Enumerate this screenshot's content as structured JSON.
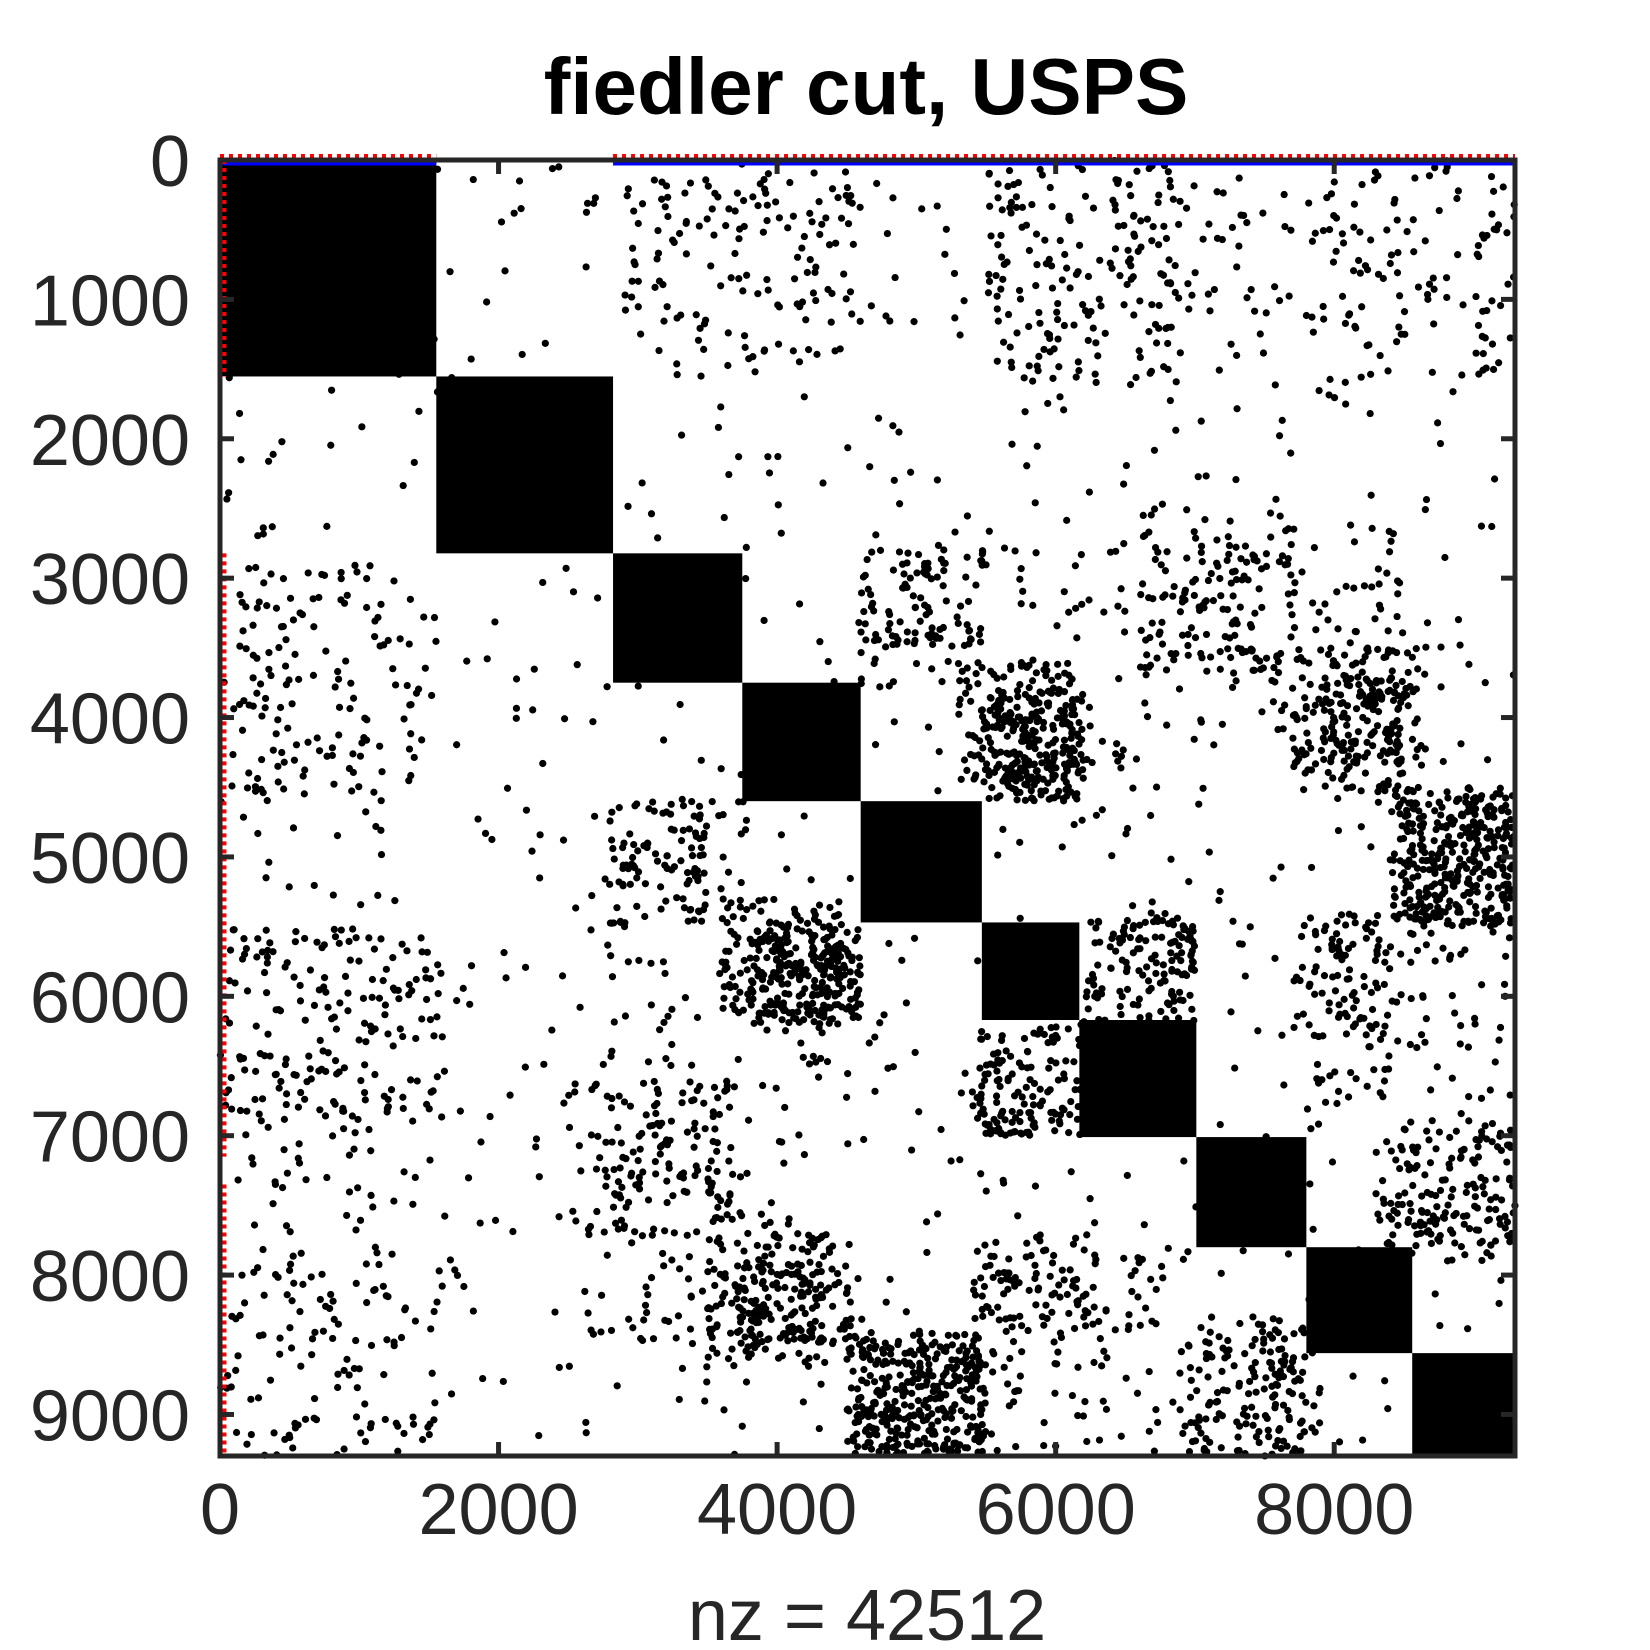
{
  "chart_data": {
    "type": "spy",
    "title": "fiedler cut, USPS",
    "xlabel": "nz = 42512",
    "ylabel": "",
    "xlim": [
      0,
      9298
    ],
    "ylim": [
      0,
      9298
    ],
    "y_reversed": true,
    "xticks": [
      0,
      2000,
      4000,
      6000,
      8000
    ],
    "xtick_labels": [
      "0",
      "2000",
      "4000",
      "6000",
      "8000"
    ],
    "yticks": [
      0,
      1000,
      2000,
      3000,
      4000,
      5000,
      6000,
      7000,
      8000,
      9000
    ],
    "ytick_labels": [
      "0",
      "1000",
      "2000",
      "3000",
      "4000",
      "5000",
      "6000",
      "7000",
      "8000",
      "9000"
    ],
    "nz": 42512,
    "grid": false,
    "blocks": [
      {
        "start": 0,
        "end": 1553
      },
      {
        "start": 1553,
        "end": 2822
      },
      {
        "start": 2822,
        "end": 3750
      },
      {
        "start": 3750,
        "end": 4600
      },
      {
        "start": 4600,
        "end": 5470
      },
      {
        "start": 5470,
        "end": 6170
      },
      {
        "start": 6170,
        "end": 7010
      },
      {
        "start": 7010,
        "end": 7800
      },
      {
        "start": 7800,
        "end": 8560
      },
      {
        "start": 8560,
        "end": 9298
      }
    ],
    "scatter_clusters": [
      {
        "x": [
          3800,
          4600
        ],
        "y": [
          5500,
          6200
        ],
        "count": 170
      },
      {
        "x": [
          5300,
          6150
        ],
        "y": [
          3600,
          4600
        ],
        "count": 150
      },
      {
        "x": [
          4600,
          5500
        ],
        "y": [
          8500,
          9298
        ],
        "count": 170
      },
      {
        "x": [
          8400,
          9298
        ],
        "y": [
          4500,
          5500
        ],
        "count": 190
      },
      {
        "x": [
          7900,
          8600
        ],
        "y": [
          3500,
          4400
        ],
        "count": 110
      },
      {
        "x": [
          3700,
          4550
        ],
        "y": [
          7700,
          8500
        ],
        "count": 120
      },
      {
        "x": [
          5400,
          6300
        ],
        "y": [
          7700,
          8400
        ],
        "count": 60
      },
      {
        "x": [
          8300,
          9298
        ],
        "y": [
          7000,
          7900
        ],
        "count": 90
      },
      {
        "x": [
          6900,
          7800
        ],
        "y": [
          8500,
          9298
        ],
        "count": 80
      },
      {
        "x": [
          5400,
          6200
        ],
        "y": [
          6200,
          7000
        ],
        "count": 70
      },
      {
        "x": [
          6200,
          7000
        ],
        "y": [
          5400,
          6100
        ],
        "count": 60
      },
      {
        "x": [
          2800,
          3700
        ],
        "y": [
          6600,
          7500
        ],
        "count": 70
      },
      {
        "x": [
          4600,
          5500
        ],
        "y": [
          2800,
          3500
        ],
        "count": 50
      },
      {
        "x": [
          2800,
          3800
        ],
        "y": [
          4600,
          5400
        ],
        "count": 60
      },
      {
        "x": [
          0,
          1600
        ],
        "y": [
          5500,
          6900
        ],
        "count": 100
      },
      {
        "x": [
          0,
          1600
        ],
        "y": [
          2900,
          4600
        ],
        "count": 60
      },
      {
        "x": [
          0,
          1600
        ],
        "y": [
          7800,
          9298
        ],
        "count": 60
      },
      {
        "x": [
          3000,
          4600
        ],
        "y": [
          100,
          1400
        ],
        "count": 50
      },
      {
        "x": [
          5500,
          7000
        ],
        "y": [
          100,
          1600
        ],
        "count": 70
      },
      {
        "x": [
          7000,
          9298
        ],
        "y": [
          100,
          1600
        ],
        "count": 50
      },
      {
        "x": [
          7800,
          9298
        ],
        "y": [
          5400,
          6800
        ],
        "count": 90
      },
      {
        "x": [
          6600,
          7700
        ],
        "y": [
          2500,
          3800
        ],
        "count": 60
      },
      {
        "x": [
          7400,
          8500
        ],
        "y": [
          2600,
          4000
        ],
        "count": 70
      },
      {
        "x": [
          2800,
          4500
        ],
        "y": [
          5600,
          6800
        ],
        "count": 50
      },
      {
        "x": [
          0,
          9298
        ],
        "y": [
          0,
          9298
        ],
        "count": 500
      }
    ],
    "top_markers": [
      {
        "x_start": 0,
        "x_end": 1553,
        "colors": [
          "#ff0000",
          "#0000ff"
        ]
      },
      {
        "x_start": 2822,
        "x_end": 9298,
        "colors": [
          "#ff0000",
          "#0000ff"
        ]
      }
    ],
    "left_markers": [
      {
        "y_start": 0,
        "y_end": 1553,
        "color": "#ff0000"
      },
      {
        "y_start": 2822,
        "y_end": 7150,
        "color": "#ff0000"
      },
      {
        "y_start": 7350,
        "y_end": 9298,
        "color": "#ff0000"
      }
    ],
    "colors": {
      "dots": "#000000",
      "axes": "#262626",
      "red": "#ff0000",
      "blue": "#0000ff"
    }
  }
}
